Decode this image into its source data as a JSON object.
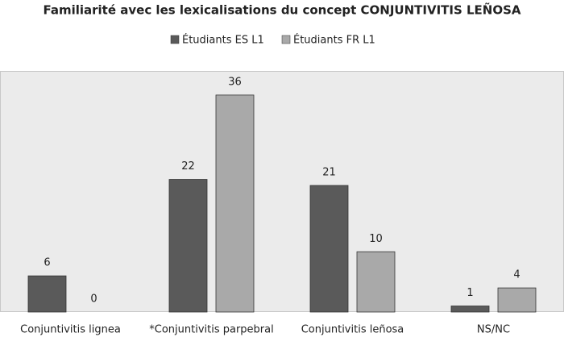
{
  "chart_data": {
    "type": "bar",
    "title": "Familiarité avec les lexicalisations du concept CONJUNTIVITIS LEÑOSA",
    "categories": [
      "Conjuntivitis lignea",
      "*Conjuntivitis parpebral",
      "Conjuntivitis leñosa",
      "NS/NC"
    ],
    "series": [
      {
        "name": "Étudiants ES L1",
        "color": "#5a5a5a",
        "values": [
          6,
          22,
          21,
          1
        ]
      },
      {
        "name": "Étudiants FR L1",
        "color": "#a9a9a9",
        "values": [
          0,
          36,
          10,
          4
        ]
      }
    ],
    "ylim": [
      0,
      40
    ],
    "legend": "top"
  }
}
